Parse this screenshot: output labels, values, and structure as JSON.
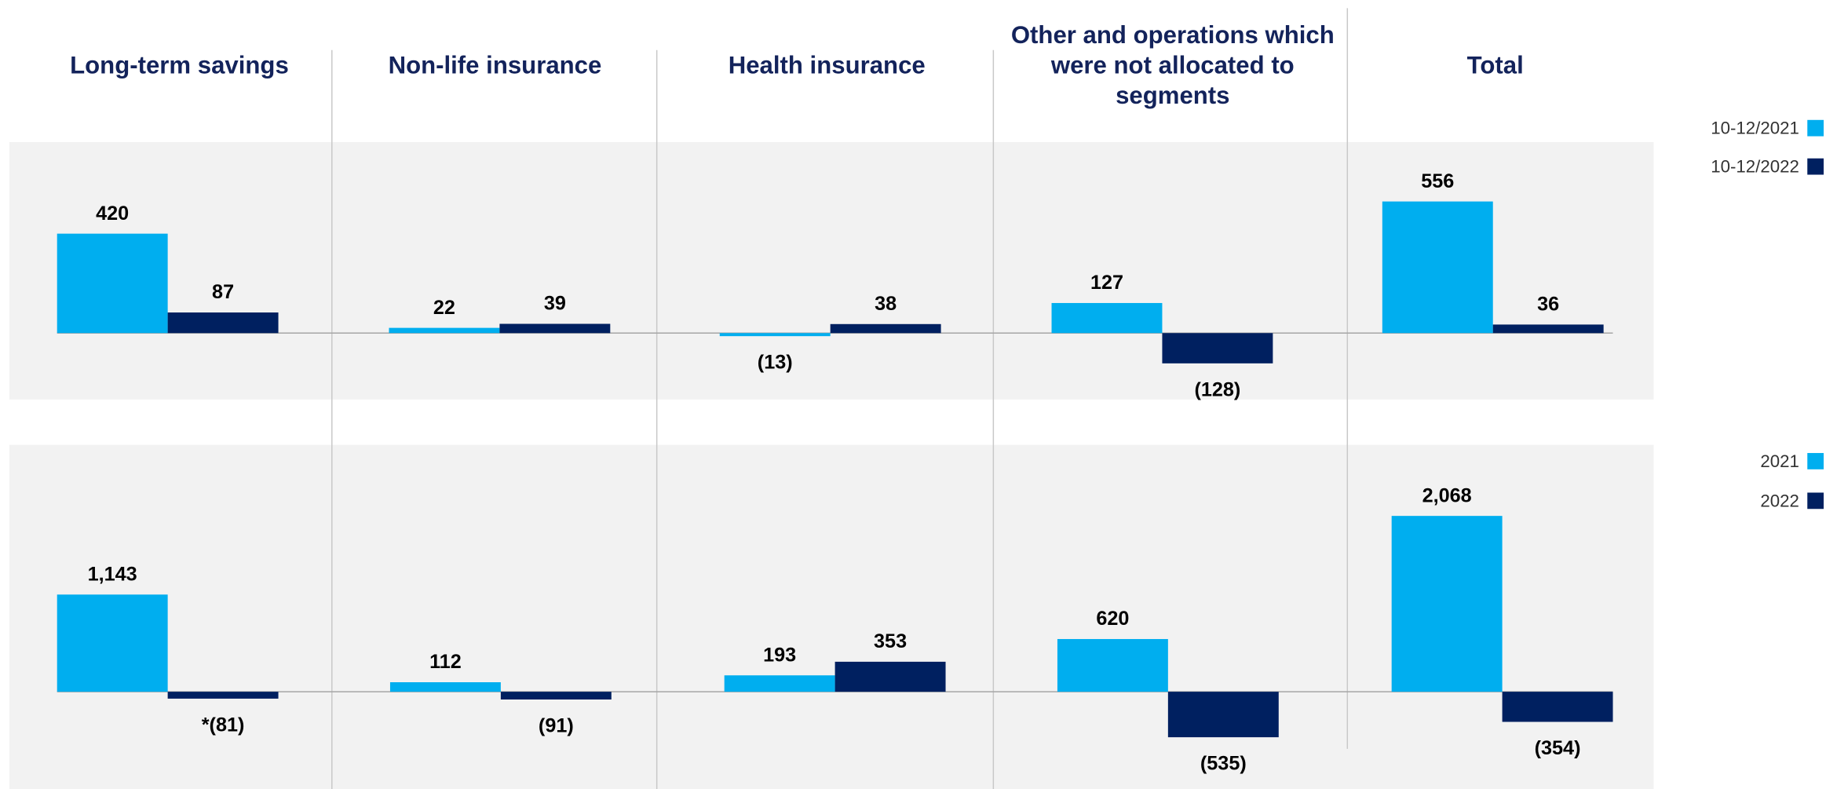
{
  "chart_data": {
    "type": "bar",
    "categories": [
      "Long-term savings",
      "Non-life insurance",
      "Health insurance",
      "Other and operations which were not allocated to segments",
      "Total"
    ],
    "panels": [
      {
        "series": [
          {
            "name": "10-12/2021",
            "color": "#00aeef",
            "values": [
              420,
              22,
              -13,
              127,
              556
            ],
            "value_labels": [
              "420",
              "22",
              "(13)",
              "127",
              "556"
            ]
          },
          {
            "name": "10-12/2022",
            "color": "#002060",
            "values": [
              87,
              39,
              38,
              -128,
              36
            ],
            "value_labels": [
              "87",
              "39",
              "38",
              "(128)",
              "36"
            ]
          }
        ]
      },
      {
        "series": [
          {
            "name": "2021",
            "color": "#00aeef",
            "values": [
              1143,
              112,
              193,
              620,
              2068
            ],
            "value_labels": [
              "1,143",
              "112",
              "193",
              "620",
              "2,068"
            ]
          },
          {
            "name": "2022",
            "color": "#002060",
            "values": [
              -81,
              -91,
              353,
              -535,
              -354
            ],
            "value_labels": [
              "*(81)",
              "(91)",
              "353",
              "(535)",
              "(354)"
            ]
          }
        ]
      }
    ]
  }
}
